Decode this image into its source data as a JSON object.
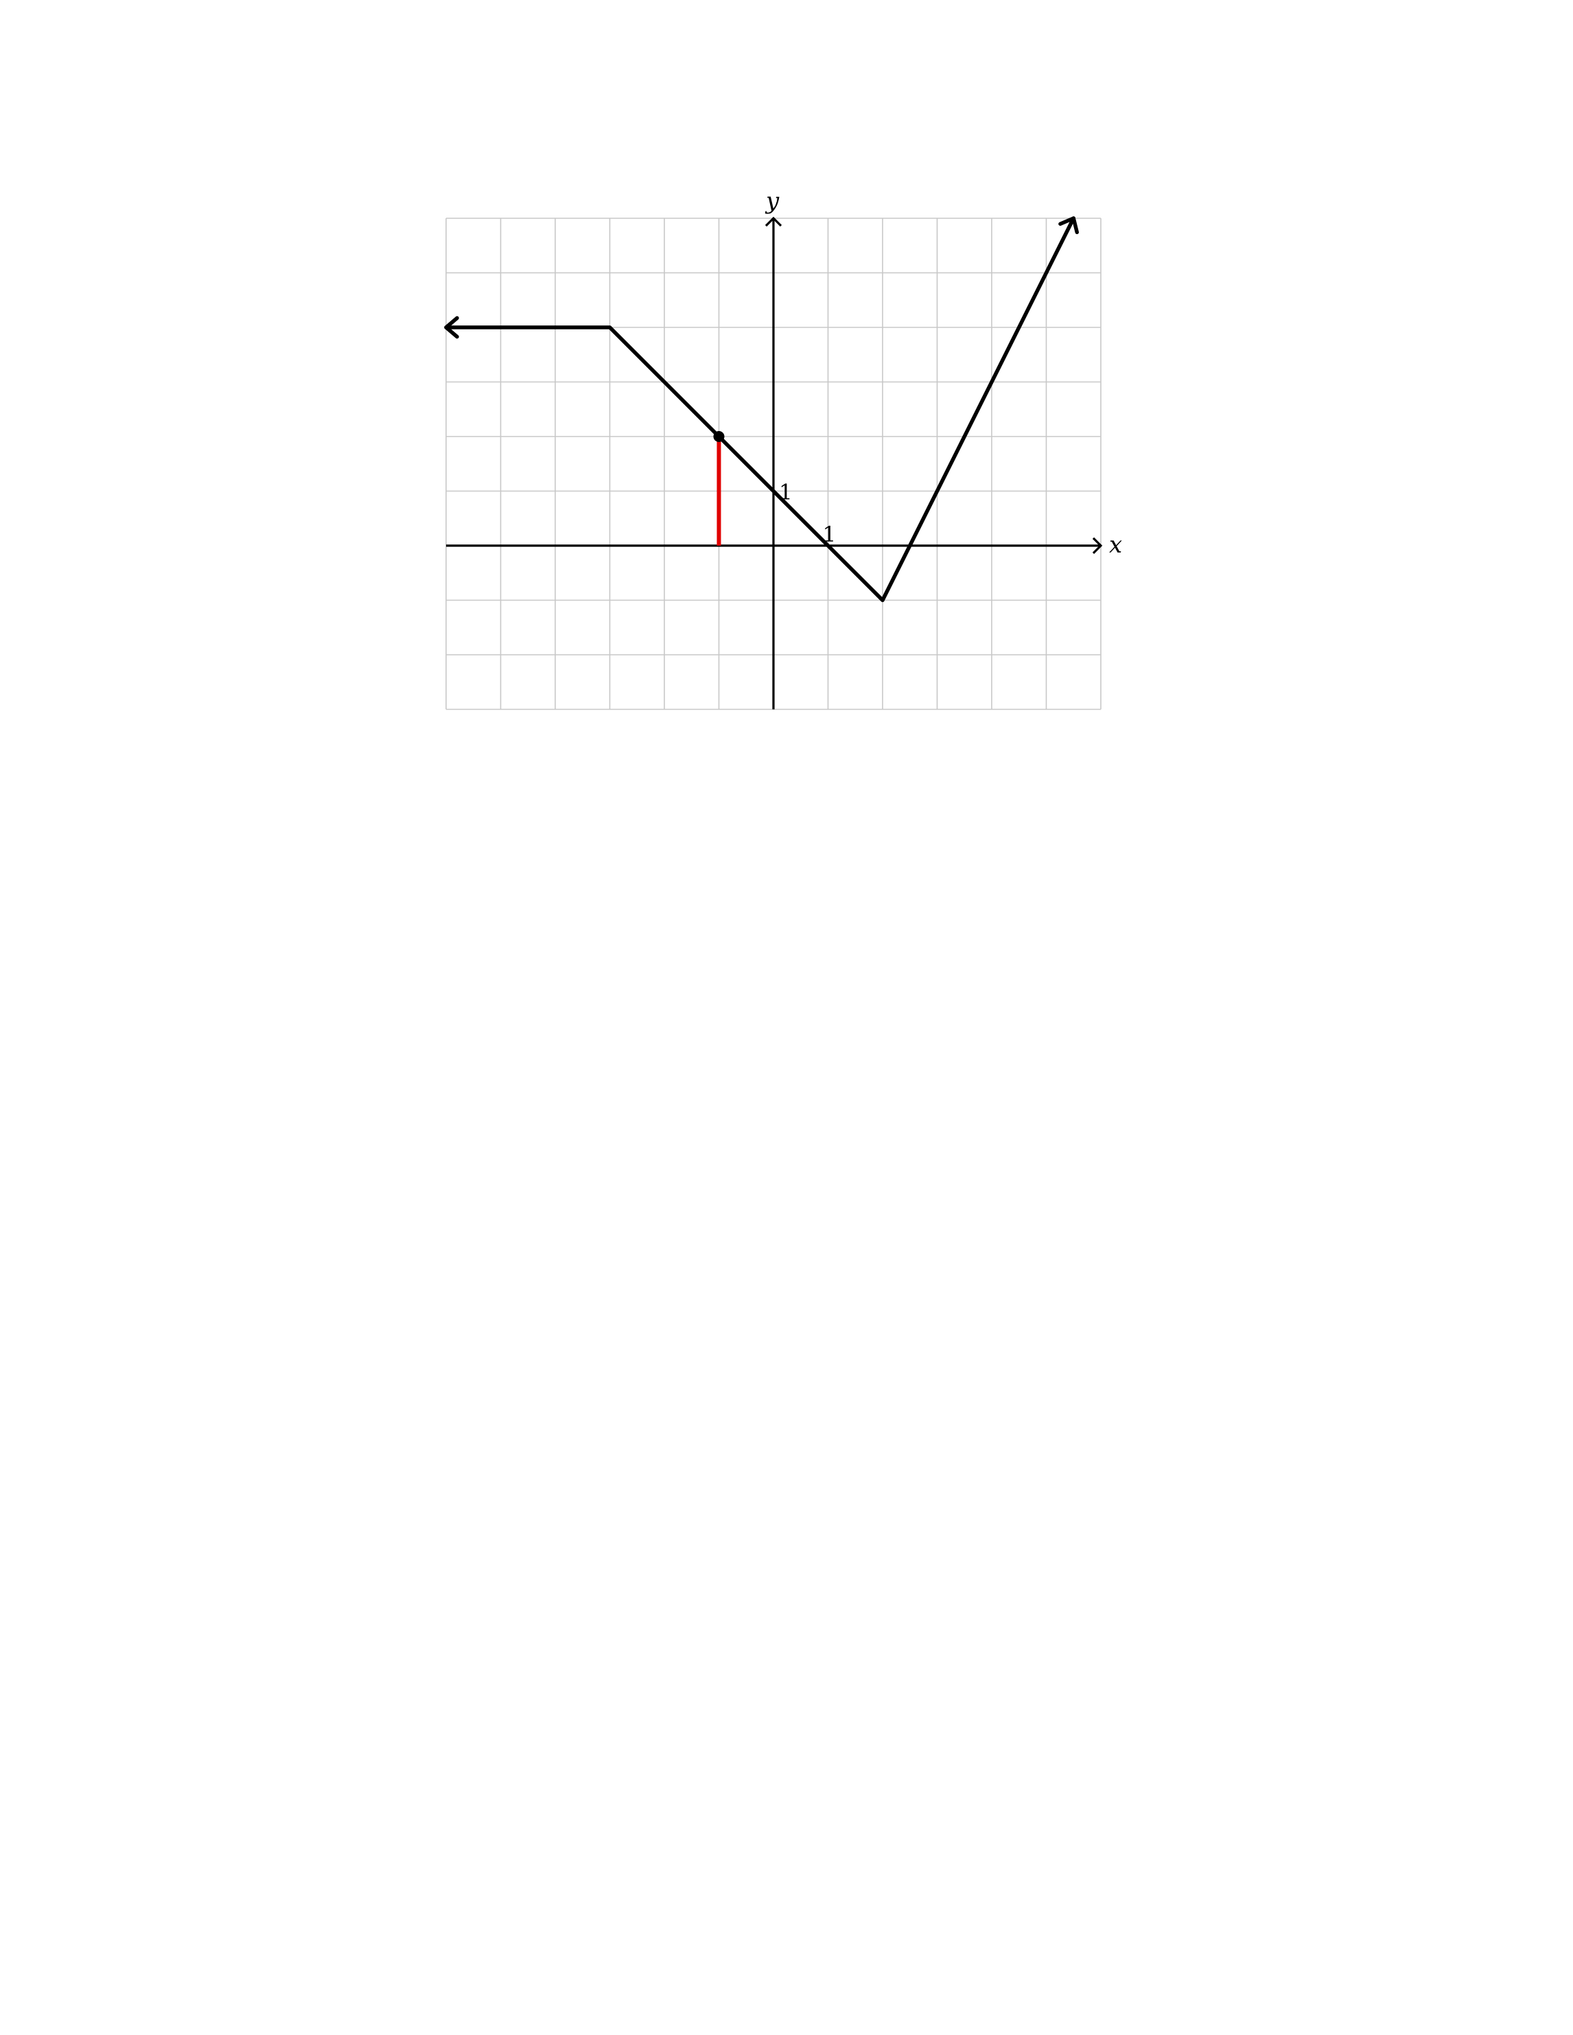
{
  "chart_data": {
    "type": "line",
    "title": "",
    "xlabel": "x",
    "ylabel": "y",
    "xlim": [
      -6,
      6
    ],
    "ylim": [
      -3,
      6
    ],
    "grid": true,
    "x_tick_labels": [
      {
        "value": 1,
        "label": "1"
      }
    ],
    "y_tick_labels": [
      {
        "value": 1,
        "label": "1"
      }
    ],
    "series": [
      {
        "points": [
          [
            -6,
            4
          ],
          [
            -3,
            4
          ],
          [
            2,
            -1
          ],
          [
            5.5,
            6
          ]
        ],
        "color": "#000000",
        "arrow_start": true,
        "arrow_end": true
      }
    ],
    "marked_point": {
      "x": -1,
      "y": 2,
      "color": "#000000"
    },
    "vertical_segment": {
      "x": -1,
      "y_from": 0,
      "y_to": 2,
      "color": "#e00000"
    }
  }
}
